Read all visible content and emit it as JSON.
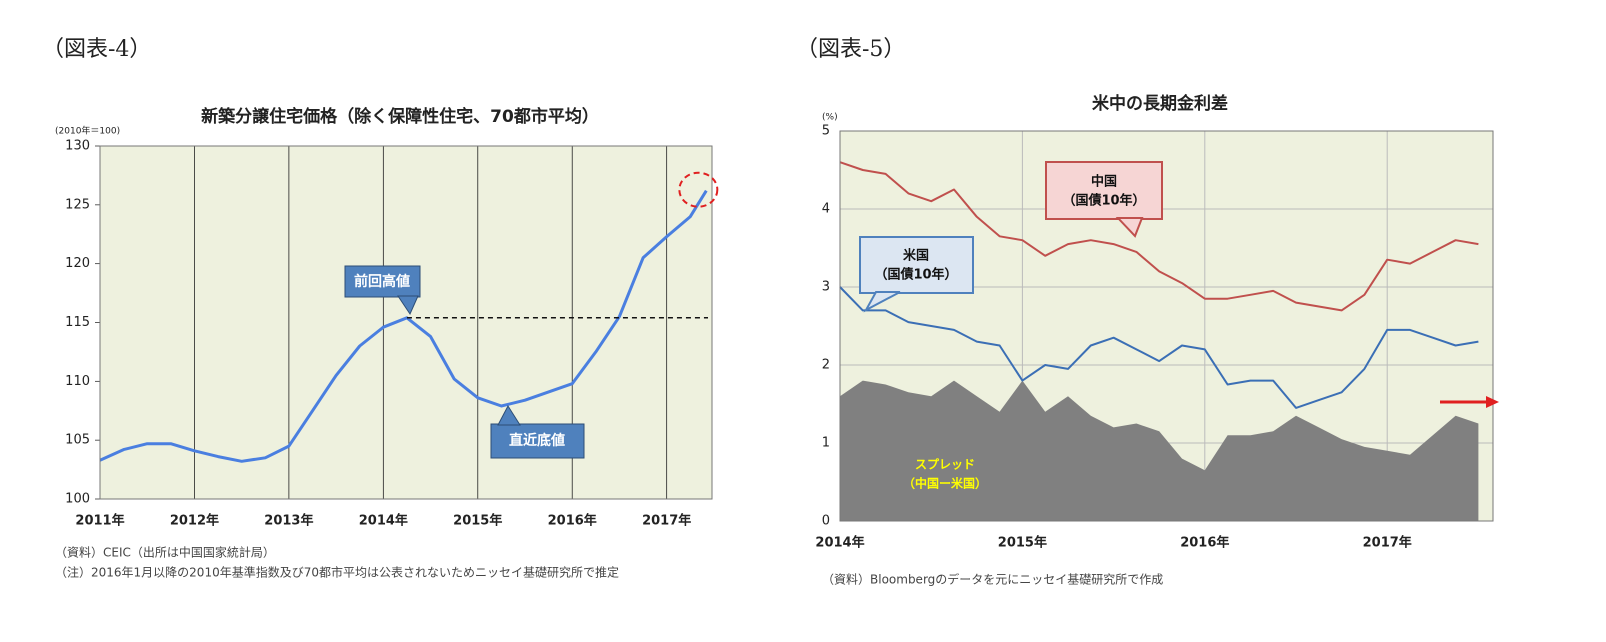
{
  "chart_data": [
    {
      "type": "line",
      "figure_label": "（図表-4）",
      "title": "新築分譲住宅価格（除く保障性住宅、70都市平均）",
      "y_unit": "(2010年＝100)",
      "x": [
        2011,
        2011.25,
        2011.5,
        2011.75,
        2012,
        2012.25,
        2012.5,
        2012.75,
        2013,
        2013.25,
        2013.5,
        2013.75,
        2014,
        2014.25,
        2014.5,
        2014.75,
        2015,
        2015.25,
        2015.5,
        2015.75,
        2016,
        2016.25,
        2016.5,
        2016.75,
        2017,
        2017.25,
        2017.42
      ],
      "values": [
        103.3,
        104.2,
        104.7,
        104.7,
        104.1,
        103.6,
        103.2,
        103.5,
        104.5,
        107.5,
        110.5,
        113.0,
        114.6,
        115.4,
        113.8,
        110.2,
        108.6,
        107.9,
        108.4,
        109.1,
        109.8,
        112.5,
        115.5,
        120.5,
        122.3,
        124.0,
        126.2
      ],
      "color": "#4a7fe0",
      "xlim": [
        2011,
        2017.48
      ],
      "xticks": [
        {
          "value": 2011,
          "label": "2011年"
        },
        {
          "value": 2012,
          "label": "2012年"
        },
        {
          "value": 2013,
          "label": "2013年"
        },
        {
          "value": 2014,
          "label": "2014年"
        },
        {
          "value": 2015,
          "label": "2015年"
        },
        {
          "value": 2016,
          "label": "2016年"
        },
        {
          "value": 2017,
          "label": "2017年"
        }
      ],
      "ylim": [
        100,
        130
      ],
      "yticks": [
        100,
        105,
        110,
        115,
        120,
        125,
        130
      ],
      "grid": "x",
      "annotations": [
        "前回高値",
        "直近底値"
      ],
      "notes": [
        "（資料）CEIC（出所は中国国家統計局）",
        "（注）2016年1月以降の2010年基準指数及び70都市平均は公表されないためニッセイ基礎研究所で推定"
      ]
    },
    {
      "type": "line",
      "figure_label": "（図表-5）",
      "title": "米中の長期金利差",
      "y_unit": "(%)",
      "x": [
        2014,
        2014.125,
        2014.25,
        2014.375,
        2014.5,
        2014.625,
        2014.75,
        2014.875,
        2015,
        2015.125,
        2015.25,
        2015.375,
        2015.5,
        2015.625,
        2015.75,
        2015.875,
        2016,
        2016.125,
        2016.25,
        2016.375,
        2016.5,
        2016.625,
        2016.75,
        2016.875,
        2017,
        2017.125,
        2017.25,
        2017.375,
        2017.5
      ],
      "series": [
        {
          "style": "area",
          "color": "#808080",
          "values": [
            1.6,
            1.8,
            1.75,
            1.65,
            1.6,
            1.8,
            1.6,
            1.4,
            1.8,
            1.4,
            1.6,
            1.35,
            1.2,
            1.25,
            1.15,
            0.8,
            0.65,
            1.1,
            1.1,
            1.15,
            1.35,
            1.2,
            1.05,
            0.95,
            0.9,
            0.85,
            1.1,
            1.35,
            1.25
          ]
        },
        {
          "style": "line",
          "color": "#c0504d",
          "values": [
            4.6,
            4.5,
            4.45,
            4.2,
            4.1,
            4.25,
            3.9,
            3.65,
            3.6,
            3.4,
            3.55,
            3.6,
            3.55,
            3.45,
            3.2,
            3.05,
            2.85,
            2.85,
            2.9,
            2.95,
            2.8,
            2.75,
            2.7,
            2.9,
            3.35,
            3.3,
            3.45,
            3.6,
            3.55
          ]
        },
        {
          "style": "line",
          "color": "#3b6fb5",
          "values": [
            3.0,
            2.7,
            2.7,
            2.55,
            2.5,
            2.45,
            2.3,
            2.25,
            1.8,
            2.0,
            1.95,
            2.25,
            2.35,
            2.2,
            2.05,
            2.25,
            2.2,
            1.75,
            1.8,
            1.8,
            1.45,
            1.55,
            1.65,
            1.95,
            2.45,
            2.45,
            2.35,
            2.25,
            2.3
          ]
        }
      ],
      "xlim": [
        2014,
        2017.58
      ],
      "xticks": [
        {
          "value": 2014,
          "label": "2014年"
        },
        {
          "value": 2015,
          "label": "2015年"
        },
        {
          "value": 2016,
          "label": "2016年"
        },
        {
          "value": 2017,
          "label": "2017年"
        }
      ],
      "ylim": [
        0,
        5
      ],
      "yticks": [
        0,
        1,
        2,
        3,
        4,
        5
      ],
      "grid": "both",
      "annotations": [
        [
          "中国",
          "（国債10年）"
        ],
        [
          "米国",
          "（国債10年）"
        ],
        [
          "スプレッド",
          "（中国ー米国）"
        ]
      ],
      "notes": [
        "（資料）Bloombergのデータを元にニッセイ基礎研究所で作成"
      ]
    }
  ]
}
